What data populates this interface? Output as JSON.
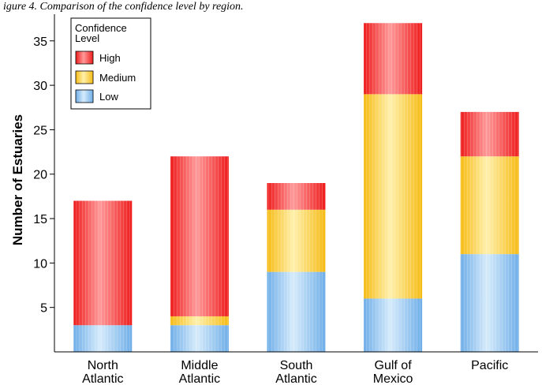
{
  "caption": "igure 4. Comparison of the confidence level by region.",
  "chart_data": {
    "type": "bar",
    "stacked": true,
    "categories": [
      [
        "North",
        "Atlantic"
      ],
      [
        "Middle",
        "Atlantic"
      ],
      [
        "South",
        "Atlantic"
      ],
      [
        "Gulf of",
        "Mexico"
      ],
      [
        "Pacific"
      ]
    ],
    "series": [
      {
        "name": "Low",
        "values": [
          3,
          3,
          9,
          6,
          11
        ],
        "color": "#8fc0ef"
      },
      {
        "name": "Medium",
        "values": [
          0,
          1,
          7,
          23,
          11
        ],
        "color": "#ffd65a"
      },
      {
        "name": "High",
        "values": [
          14,
          18,
          3,
          8,
          5
        ],
        "color": "#ff5a5a"
      }
    ],
    "ylabel": "Number of Estuaries",
    "xlabel": "",
    "ylim": [
      0,
      38
    ],
    "yticks": [
      5,
      10,
      15,
      20,
      25,
      30,
      35
    ],
    "legend": {
      "title": [
        "Confidence",
        "Level"
      ],
      "entries": [
        "High",
        "Medium",
        "Low"
      ],
      "placement": "top-left"
    },
    "grid": false
  }
}
